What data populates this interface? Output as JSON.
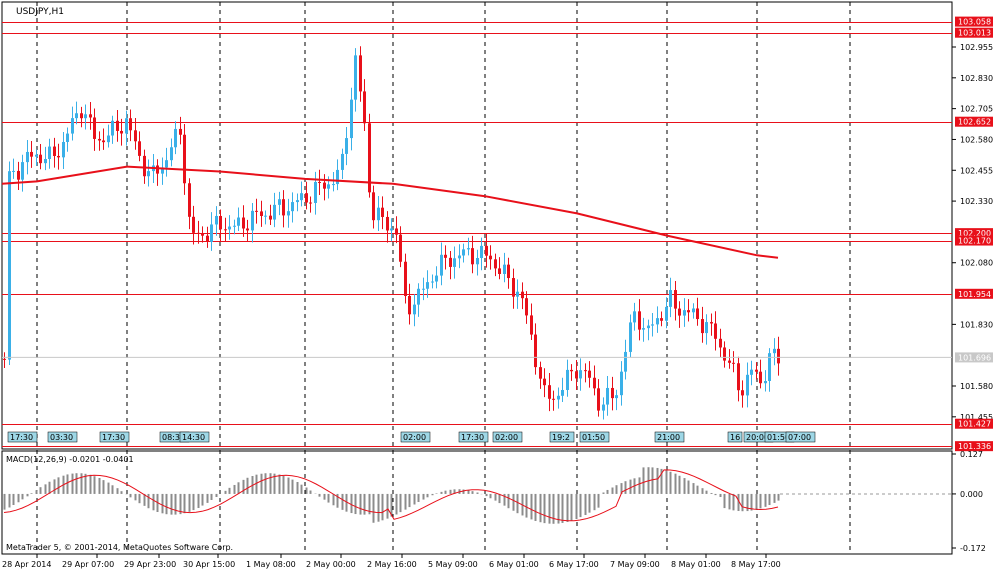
{
  "window": {
    "symbol_title": "USDJPY,H1",
    "copyright": "MetaTrader 5, © 2001-2014, MetaQuotes Software Corp.",
    "indicator_title": "MACD(12,26,9) -0.0201 -0.0401"
  },
  "colors": {
    "bull": "#3ab0e8",
    "bear": "#e8101a",
    "ma": "#e8101a",
    "hline": "#e8101a",
    "grid": "#000000",
    "macd_hist": "#8c8c8c",
    "macd_signal": "#e8101a",
    "current_price_tag": "#c8c8c8",
    "event_tag": "#9ed7e6"
  },
  "price_axis": {
    "ticks": [
      "102.955",
      "102.830",
      "102.705",
      "102.580",
      "102.455",
      "102.330",
      "102.080",
      "101.830",
      "101.580",
      "101.455"
    ],
    "levels": [
      "103.058",
      "103.013",
      "102.652",
      "102.200",
      "102.170",
      "101.954",
      "101.427",
      "101.336"
    ],
    "current_price": "101.696"
  },
  "macd_axis": {
    "ticks": [
      "0.127",
      "0.000",
      "-0.172"
    ]
  },
  "time_axis": {
    "labels": [
      "28 Apr 2014",
      "29 Apr 07:00",
      "29 Apr 23:00",
      "30 Apr 15:00",
      "1 May 08:00",
      "2 May 00:00",
      "2 May 16:00",
      "5 May 09:00",
      "6 May 01:00",
      "6 May 17:00",
      "7 May 09:00",
      "8 May 01:00",
      "8 May 17:00"
    ]
  },
  "event_tags": [
    "17:30",
    "03:30",
    "17:30",
    "08:30",
    "14:30",
    "02:00",
    "17:30",
    "02:00",
    "19:2",
    "01:50",
    "21:00",
    "16",
    "20:00",
    "01:50",
    "07:00"
  ],
  "chart_data": {
    "type": "candlestick",
    "title": "USDJPY,H1",
    "ylim": [
      101.42,
      103.08
    ],
    "ma_line": [
      {
        "x": "28 Apr 2014",
        "y": 102.41
      },
      {
        "x": "29 Apr 07:00",
        "y": 102.43
      },
      {
        "x": "29 Apr 23:00",
        "y": 102.46
      },
      {
        "x": "30 Apr 15:00",
        "y": 102.45
      },
      {
        "x": "1 May 08:00",
        "y": 102.43
      },
      {
        "x": "2 May 00:00",
        "y": 102.41
      },
      {
        "x": "2 May 16:00",
        "y": 102.39
      },
      {
        "x": "5 May 09:00",
        "y": 102.36
      },
      {
        "x": "6 May 01:00",
        "y": 102.34
      },
      {
        "x": "6 May 17:00",
        "y": 102.29
      },
      {
        "x": "7 May 09:00",
        "y": 102.23
      },
      {
        "x": "8 May 01:00",
        "y": 102.18
      },
      {
        "x": "8 May 17:00",
        "y": 102.11
      }
    ],
    "macd_ylim": [
      -0.172,
      0.127
    ],
    "series_names": [
      "USDJPY,H1",
      "MACD(12,26,9)"
    ]
  }
}
